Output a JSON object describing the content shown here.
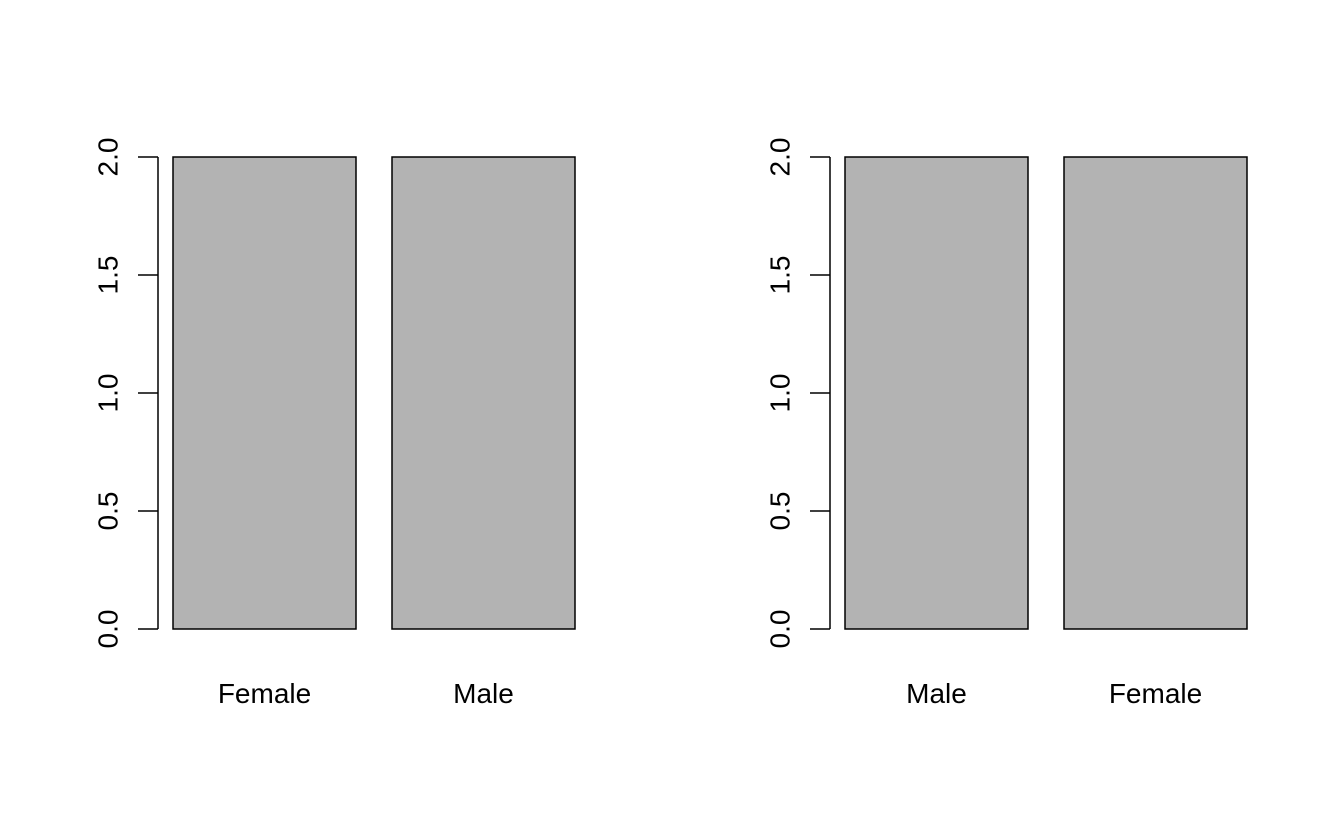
{
  "colors": {
    "bar_fill": "#b3b3b3",
    "bar_stroke": "#000000",
    "axis": "#000000",
    "background": "#ffffff"
  },
  "chart_data": [
    {
      "type": "bar",
      "categories": [
        "Female",
        "Male"
      ],
      "values": [
        2,
        2
      ],
      "title": "",
      "xlabel": "",
      "ylabel": "",
      "ylim": [
        0,
        2
      ],
      "yticks": [
        "0.0",
        "0.5",
        "1.0",
        "1.5",
        "2.0"
      ],
      "grid": false,
      "legend": "none"
    },
    {
      "type": "bar",
      "categories": [
        "Male",
        "Female"
      ],
      "values": [
        2,
        2
      ],
      "title": "",
      "xlabel": "",
      "ylabel": "",
      "ylim": [
        0,
        2
      ],
      "yticks": [
        "0.0",
        "0.5",
        "1.0",
        "1.5",
        "2.0"
      ],
      "grid": false,
      "legend": "none"
    }
  ]
}
